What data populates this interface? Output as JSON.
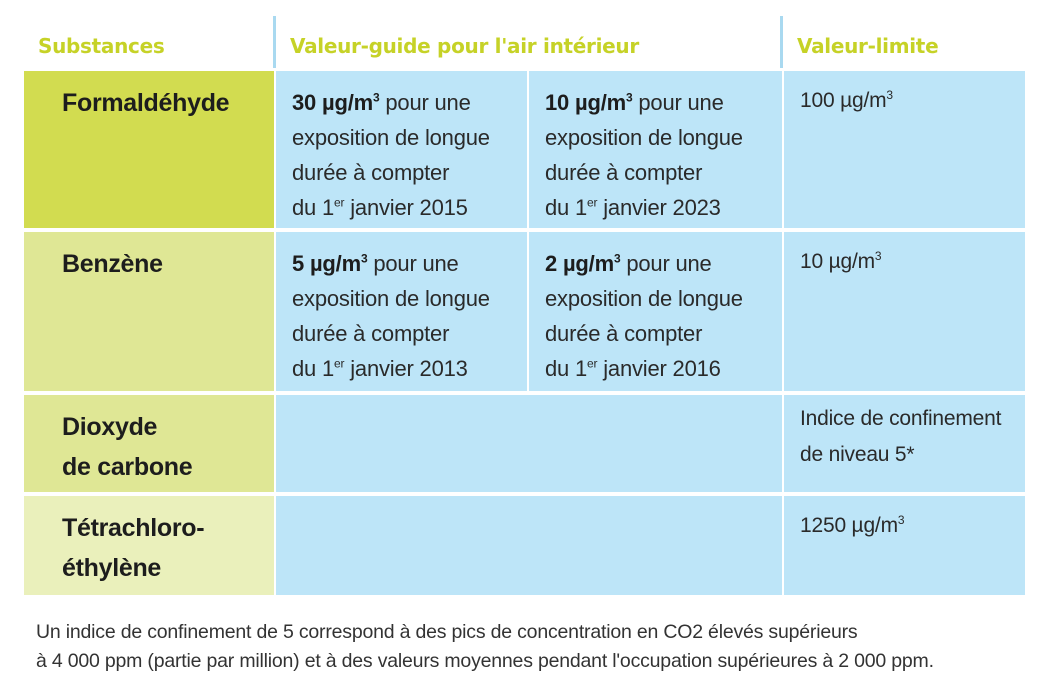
{
  "headers": {
    "substances": "Substances",
    "guide": "Valeur-guide pour l'air intérieur",
    "limit": "Valeur-limite"
  },
  "rows": [
    {
      "substance": "Formaldéhyde",
      "guide1": {
        "value": "30 µg/m",
        "sup": "3",
        "l1": " pour une",
        "l2": "exposition de longue",
        "l3": "durée à compter",
        "l4a": "du 1",
        "l4sup": "er",
        "l4b": " janvier 2015"
      },
      "guide2": {
        "value": "10 µg/m",
        "sup": "3",
        "l1": " pour une",
        "l2": "exposition de longue",
        "l3": "durée à compter",
        "l4a": "du 1",
        "l4sup": "er",
        "l4b": " janvier 2023"
      },
      "limit": {
        "value": "100 µg/m",
        "sup": "3"
      }
    },
    {
      "substance": "Benzène",
      "guide1": {
        "value": "5 µg/m",
        "sup": "3",
        "l1": " pour une",
        "l2": "exposition de longue",
        "l3": "durée à compter",
        "l4a": "du 1",
        "l4sup": "er",
        "l4b": " janvier 2013"
      },
      "guide2": {
        "value": "2 µg/m",
        "sup": "3",
        "l1": " pour une",
        "l2": "exposition de longue",
        "l3": "durée à compter",
        "l4a": "du 1",
        "l4sup": "er",
        "l4b": " janvier 2016"
      },
      "limit": {
        "value": "10 µg/m",
        "sup": "3"
      }
    },
    {
      "substance_l1": "Dioxyde",
      "substance_l2": "de carbone",
      "limit_l1": "Indice de confinement",
      "limit_l2": "de niveau 5*"
    },
    {
      "substance_l1": "Tétrachloro-",
      "substance_l2": "éthylène",
      "limit": {
        "value": "1250 µg/m",
        "sup": "3"
      }
    }
  ],
  "colors": {
    "header_text": "#c6d227",
    "blue_cell": "#bde5f8",
    "green_row1": "#d2dc50",
    "green_row2": "#dfe795",
    "green_row3": "#dfe795",
    "green_row4": "#eaf0bb"
  },
  "footnote": {
    "line1": "Un indice de confinement de 5 correspond à des pics de concentration en CO2 élevés supérieurs",
    "line2": "à 4 000 ppm (partie par million) et à des valeurs moyennes pendant l'occupation supérieures à 2 000 ppm."
  }
}
